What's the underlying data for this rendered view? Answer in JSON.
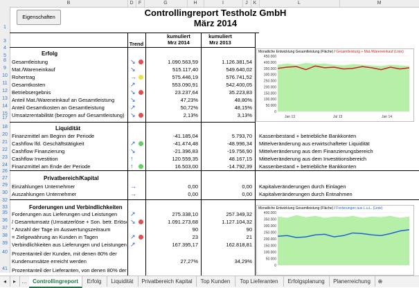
{
  "columns": [
    "B",
    "D",
    "F",
    "G",
    "H",
    "I",
    "J",
    "K",
    "L",
    "M"
  ],
  "button_label": "Eigenschaften",
  "title_line1": "Controllingreport Testholz GmbH",
  "title_line2": "März 2014",
  "col_headers": {
    "trend": "Trend",
    "kum2014": "kumuliert\nMrz 2014",
    "kum2013": "kumuliert\nMrz 2013"
  },
  "sections": {
    "erfolg": "Erfolg",
    "liquiditaet": "Liquidität",
    "privat": "Privatbereich/Kapital",
    "forderungen": "Forderungen und Verbindlichkeiten"
  },
  "rows": [
    {
      "n": "8",
      "label": "Gesamtleistung",
      "v1": "1.090.563,59",
      "v2": "1.126.381,54",
      "arrow": "↘",
      "dot": "#e05050"
    },
    {
      "n": "9",
      "label": "Mat./Wareneinkauf",
      "v1": "515.117,40",
      "v2": "549.640,02",
      "arrow": "↘",
      "dot": ""
    },
    {
      "n": "10",
      "label": "Rohertrag",
      "v1": "575.446,19",
      "v2": "576.741,52",
      "arrow": "→",
      "dot": "#f0e040"
    },
    {
      "n": "11",
      "label": "Gesamtkosten",
      "v1": "553.090,91",
      "v2": "542.400,05",
      "arrow": "↗",
      "dot": ""
    },
    {
      "n": "12",
      "label": "Betriebsergebnis",
      "v1": "23.237,64",
      "v2": "35.223,83",
      "arrow": "↘",
      "dot": "#e05050"
    },
    {
      "n": "13",
      "label": "Anteil Mat./Wareneinkauf an Gesamtleistung",
      "v1": "47,23%",
      "v2": "48,80%",
      "arrow": "↘",
      "dot": ""
    },
    {
      "n": "14",
      "label": "Anteil Gesamtkosten an Gesamtleistung",
      "v1": "50,72%",
      "v2": "48,15%",
      "arrow": "↗",
      "dot": ""
    },
    {
      "n": "15",
      "label": "Umsatzrentabilität (bezogen auf Gesamtleistung)",
      "v1": "2,13%",
      "v2": "3,13%",
      "arrow": "↘",
      "dot": "#e05050"
    }
  ],
  "liq_rows": [
    {
      "n": "20",
      "label": "Finanzmittel am Beginn der Periode",
      "v1": "-41.185,04",
      "v2": "5.793,70",
      "arrow": "",
      "dot": "",
      "note": "Kassenbestand + betriebliche Bankkonten"
    },
    {
      "n": "21",
      "label": "Cashflow lfd. Geschäftstätigkeit",
      "v1": "-41.474,48",
      "v2": "-48.996,34",
      "arrow": "↗",
      "dot": "#60d060",
      "note": "Mittelveränderung aus erwirtschafteter Liquidität"
    },
    {
      "n": "22",
      "label": "Cashflow Finanzierung",
      "v1": "-21.396,83",
      "v2": "-19.756,90",
      "arrow": "↘",
      "dot": "",
      "note": "Mittelveränderung aus dem Finanzierungsbereich"
    },
    {
      "n": "23",
      "label": "Cashflow Investition",
      "v1": "120.559,35",
      "v2": "48.167,15",
      "arrow": "↑",
      "dot": "",
      "note": "Mittelveränderung aus dem Investitionsbereich"
    },
    {
      "n": "24",
      "label": "Finanzmittel am Ende der Periode",
      "v1": "16.503,00",
      "v2": "-14.792,39",
      "arrow": "↑",
      "dot": "#60d060",
      "note": "Kassenbestand + betriebliche Bankkonten"
    }
  ],
  "priv_rows": [
    {
      "n": "29",
      "label": "Einzahlungen Unternehmer",
      "v1": "0,00",
      "v2": "0,00",
      "arrow": "→",
      "note": "Kapitalveränderungen durch Einlagen"
    },
    {
      "n": "30",
      "label": "Auszahlungen Unternehmer",
      "v1": "0,00",
      "v2": "0,00",
      "arrow": "→",
      "note": "Kapitalveränderungen durch Entnahmen"
    }
  ],
  "ford_rows": [
    {
      "n": "35",
      "label": "Forderungen aus Lieferungen und Leistungen",
      "v1": "275.338,10",
      "v2": "257.349,32",
      "arrow": "↗",
      "dot": ""
    },
    {
      "n": "36",
      "label": "/ Gesamtumsatz (Umsatzerlöse + Son. betr. Erlöse)",
      "v1": "1.091.273,68",
      "v2": "1.127.104,32",
      "arrow": "↘",
      "dot": "#e05050"
    },
    {
      "n": "37",
      "label": "* Anzahl der Tage im Auswertungszeitraum",
      "v1": "90",
      "v2": "90",
      "arrow": "",
      "dot": ""
    },
    {
      "n": "38",
      "label": "= Zielgewährung an Kunden in Tagen",
      "v1": "23",
      "v2": "21",
      "arrow": "↗",
      "dot": "#e05050"
    },
    {
      "n": "39",
      "label": "Verbindlichkeiten aus Lieferungen und Leistungen",
      "v1": "167.395,17",
      "v2": "162.818,81",
      "arrow": "↗",
      "dot": ""
    },
    {
      "n": "40",
      "label": "Prozentanteil der Kunden, mit denen 80% der",
      "v1": "",
      "v2": "",
      "arrow": "",
      "dot": ""
    },
    {
      "n": "",
      "label": "Kundenumsätze erreicht werden",
      "v1": "27,27%",
      "v2": "34,29%",
      "arrow": "",
      "dot": ""
    },
    {
      "n": "41",
      "label": "Prozentanteil der Lieferanten, von denen 80% der",
      "v1": "",
      "v2": "",
      "arrow": "",
      "dot": ""
    }
  ],
  "row_numbers_misc": [
    "1",
    "3",
    "4",
    "5",
    "17",
    "18",
    "26",
    "27",
    "32",
    "33"
  ],
  "chart1": {
    "title": "Monatliche Entwicklung Gesamtleistung (Fläche)",
    "legend2": "Gesamtleistung + Mat./Wareneinkauf (Linie)",
    "yticks": [
      "450.000",
      "400.000",
      "350.000",
      "300.000",
      "250.000",
      "200.000",
      "150.000",
      "100.000",
      "50.000",
      "0"
    ],
    "xticks": [
      "Jan 13",
      "Jul 13",
      "Jan 14"
    ]
  },
  "chart2": {
    "title": "Monatliche Entwicklung Gesamtleistung (Fläche)",
    "legend2": "Forderungen aus L.u.L. (Linie)",
    "yticks": [
      "400.000",
      "350.000",
      "300.000",
      "250.000",
      "200.000",
      "150.000",
      "100.000",
      "50.000",
      "0"
    ]
  },
  "tabs": [
    "Controllingreport",
    "Erfolg",
    "Liquidität",
    "Privatbereich Kapital",
    "Top Kunden",
    "Top Lieferanten",
    "Erfolgsplanung",
    "Planerreichung"
  ],
  "colors": {
    "accent": "#217346",
    "area": "#b6f0a8",
    "line_red": "#d02020",
    "line_blue": "#2060d0"
  }
}
